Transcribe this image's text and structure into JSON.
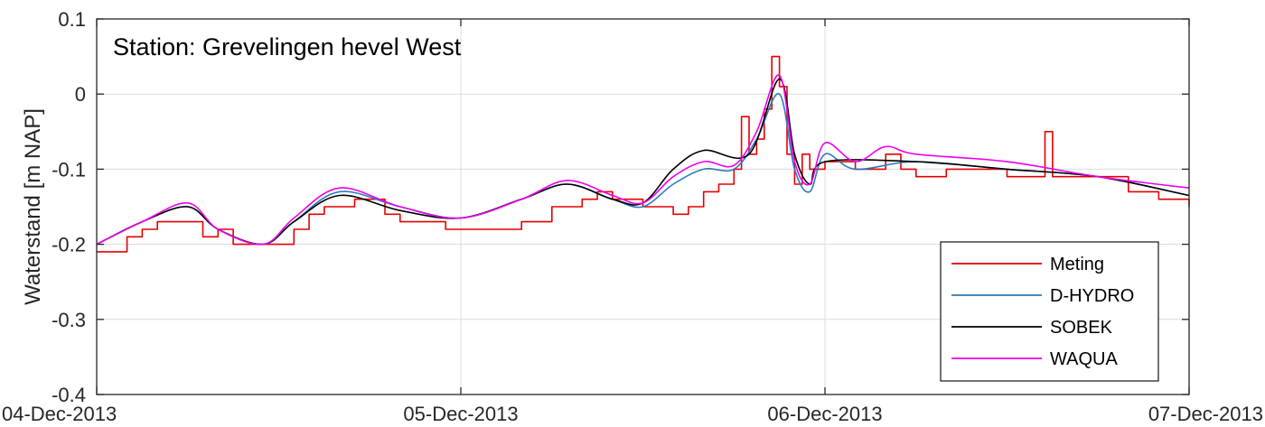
{
  "chart_data": {
    "type": "line",
    "annotation": "Station: Grevelingen hevel West",
    "ylabel": "Waterstand [m NAP]",
    "xlabel": "",
    "xlim": [
      "04-Dec-2013",
      "07-Dec-2013"
    ],
    "ylim": [
      -0.4,
      0.1
    ],
    "x_tick_labels": [
      "04-Dec-2013",
      "05-Dec-2013",
      "06-Dec-2013",
      "07-Dec-2013"
    ],
    "y_ticks": [
      -0.4,
      -0.3,
      -0.2,
      -0.1,
      0,
      0.1
    ],
    "y_tick_labels": [
      "-0.4",
      "-0.3",
      "-0.2",
      "-0.1",
      "0",
      "0.1"
    ],
    "grid": true,
    "legend_position": "bottom-right",
    "series": [
      {
        "name": "Meting",
        "color": "#e60000",
        "points": [
          [
            "04-Dec-2013 00:00",
            -0.21
          ],
          [
            "04-Dec-2013 01:00",
            -0.21
          ],
          [
            "04-Dec-2013 02:00",
            -0.19
          ],
          [
            "04-Dec-2013 03:00",
            -0.18
          ],
          [
            "04-Dec-2013 04:00",
            -0.17
          ],
          [
            "04-Dec-2013 06:00",
            -0.17
          ],
          [
            "04-Dec-2013 07:00",
            -0.19
          ],
          [
            "04-Dec-2013 08:00",
            -0.18
          ],
          [
            "04-Dec-2013 09:00",
            -0.2
          ],
          [
            "04-Dec-2013 12:00",
            -0.2
          ],
          [
            "04-Dec-2013 13:00",
            -0.18
          ],
          [
            "04-Dec-2013 14:00",
            -0.16
          ],
          [
            "04-Dec-2013 15:00",
            -0.15
          ],
          [
            "04-Dec-2013 17:00",
            -0.14
          ],
          [
            "04-Dec-2013 19:00",
            -0.16
          ],
          [
            "04-Dec-2013 20:00",
            -0.17
          ],
          [
            "04-Dec-2013 23:00",
            -0.18
          ],
          [
            "05-Dec-2013 02:00",
            -0.18
          ],
          [
            "05-Dec-2013 04:00",
            -0.17
          ],
          [
            "05-Dec-2013 06:00",
            -0.15
          ],
          [
            "05-Dec-2013 08:00",
            -0.14
          ],
          [
            "05-Dec-2013 09:00",
            -0.13
          ],
          [
            "05-Dec-2013 10:00",
            -0.14
          ],
          [
            "05-Dec-2013 12:00",
            -0.15
          ],
          [
            "05-Dec-2013 14:00",
            -0.16
          ],
          [
            "05-Dec-2013 15:00",
            -0.15
          ],
          [
            "05-Dec-2013 16:00",
            -0.13
          ],
          [
            "05-Dec-2013 17:00",
            -0.12
          ],
          [
            "05-Dec-2013 18:00",
            -0.1
          ],
          [
            "05-Dec-2013 18:30",
            -0.03
          ],
          [
            "05-Dec-2013 19:00",
            -0.08
          ],
          [
            "05-Dec-2013 19:30",
            -0.06
          ],
          [
            "05-Dec-2013 20:00",
            -0.02
          ],
          [
            "05-Dec-2013 20:30",
            0.05
          ],
          [
            "05-Dec-2013 21:00",
            0.01
          ],
          [
            "05-Dec-2013 21:30",
            -0.08
          ],
          [
            "05-Dec-2013 22:00",
            -0.12
          ],
          [
            "05-Dec-2013 22:30",
            -0.08
          ],
          [
            "05-Dec-2013 23:00",
            -0.1
          ],
          [
            "06-Dec-2013 00:00",
            -0.09
          ],
          [
            "06-Dec-2013 02:00",
            -0.1
          ],
          [
            "06-Dec-2013 04:00",
            -0.08
          ],
          [
            "06-Dec-2013 05:00",
            -0.1
          ],
          [
            "06-Dec-2013 06:00",
            -0.11
          ],
          [
            "06-Dec-2013 08:00",
            -0.1
          ],
          [
            "06-Dec-2013 12:00",
            -0.11
          ],
          [
            "06-Dec-2013 14:00",
            -0.11
          ],
          [
            "06-Dec-2013 14:30",
            -0.05
          ],
          [
            "06-Dec-2013 15:00",
            -0.11
          ],
          [
            "06-Dec-2013 18:00",
            -0.11
          ],
          [
            "06-Dec-2013 20:00",
            -0.13
          ],
          [
            "06-Dec-2013 22:00",
            -0.14
          ],
          [
            "07-Dec-2013 00:00",
            -0.15
          ]
        ]
      },
      {
        "name": "D-HYDRO",
        "color": "#2b7bb9",
        "points": [
          [
            "04-Dec-2013 00:00",
            -0.2
          ],
          [
            "04-Dec-2013 03:00",
            -0.17
          ],
          [
            "04-Dec-2013 06:00",
            -0.15
          ],
          [
            "04-Dec-2013 08:00",
            -0.18
          ],
          [
            "04-Dec-2013 11:00",
            -0.2
          ],
          [
            "04-Dec-2013 13:00",
            -0.17
          ],
          [
            "04-Dec-2013 16:00",
            -0.13
          ],
          [
            "04-Dec-2013 20:00",
            -0.15
          ],
          [
            "05-Dec-2013 00:00",
            -0.165
          ],
          [
            "05-Dec-2013 04:00",
            -0.14
          ],
          [
            "05-Dec-2013 07:00",
            -0.12
          ],
          [
            "05-Dec-2013 10:00",
            -0.14
          ],
          [
            "05-Dec-2013 12:00",
            -0.15
          ],
          [
            "05-Dec-2013 14:00",
            -0.12
          ],
          [
            "05-Dec-2013 16:00",
            -0.1
          ],
          [
            "05-Dec-2013 18:00",
            -0.1
          ],
          [
            "05-Dec-2013 19:30",
            -0.06
          ],
          [
            "05-Dec-2013 21:00",
            0.0
          ],
          [
            "05-Dec-2013 22:00",
            -0.1
          ],
          [
            "05-Dec-2013 23:00",
            -0.13
          ],
          [
            "06-Dec-2013 00:00",
            -0.08
          ],
          [
            "06-Dec-2013 02:00",
            -0.1
          ],
          [
            "06-Dec-2013 06:00",
            -0.09
          ],
          [
            "06-Dec-2013 12:00",
            -0.1
          ],
          [
            "06-Dec-2013 18:00",
            -0.11
          ],
          [
            "07-Dec-2013 00:00",
            -0.135
          ]
        ]
      },
      {
        "name": "SOBEK",
        "color": "#000000",
        "points": [
          [
            "04-Dec-2013 00:00",
            -0.2
          ],
          [
            "04-Dec-2013 03:00",
            -0.17
          ],
          [
            "04-Dec-2013 06:00",
            -0.15
          ],
          [
            "04-Dec-2013 08:00",
            -0.18
          ],
          [
            "04-Dec-2013 11:00",
            -0.2
          ],
          [
            "04-Dec-2013 13:00",
            -0.17
          ],
          [
            "04-Dec-2013 16:00",
            -0.135
          ],
          [
            "04-Dec-2013 20:00",
            -0.155
          ],
          [
            "05-Dec-2013 00:00",
            -0.165
          ],
          [
            "05-Dec-2013 04:00",
            -0.14
          ],
          [
            "05-Dec-2013 07:00",
            -0.12
          ],
          [
            "05-Dec-2013 10:00",
            -0.14
          ],
          [
            "05-Dec-2013 12:00",
            -0.145
          ],
          [
            "05-Dec-2013 14:00",
            -0.1
          ],
          [
            "05-Dec-2013 16:00",
            -0.075
          ],
          [
            "05-Dec-2013 19:00",
            -0.08
          ],
          [
            "05-Dec-2013 21:00",
            0.02
          ],
          [
            "05-Dec-2013 22:00",
            -0.08
          ],
          [
            "05-Dec-2013 23:00",
            -0.12
          ],
          [
            "06-Dec-2013 00:00",
            -0.09
          ],
          [
            "06-Dec-2013 06:00",
            -0.09
          ],
          [
            "06-Dec-2013 12:00",
            -0.1
          ],
          [
            "06-Dec-2013 18:00",
            -0.11
          ],
          [
            "07-Dec-2013 00:00",
            -0.135
          ]
        ]
      },
      {
        "name": "WAQUA",
        "color": "#ee00ee",
        "points": [
          [
            "04-Dec-2013 00:00",
            -0.2
          ],
          [
            "04-Dec-2013 03:00",
            -0.17
          ],
          [
            "04-Dec-2013 06:00",
            -0.145
          ],
          [
            "04-Dec-2013 08:00",
            -0.18
          ],
          [
            "04-Dec-2013 11:00",
            -0.2
          ],
          [
            "04-Dec-2013 13:00",
            -0.165
          ],
          [
            "04-Dec-2013 16:00",
            -0.125
          ],
          [
            "04-Dec-2013 20:00",
            -0.15
          ],
          [
            "05-Dec-2013 00:00",
            -0.165
          ],
          [
            "05-Dec-2013 04:00",
            -0.14
          ],
          [
            "05-Dec-2013 07:00",
            -0.115
          ],
          [
            "05-Dec-2013 10:00",
            -0.135
          ],
          [
            "05-Dec-2013 12:00",
            -0.145
          ],
          [
            "05-Dec-2013 14:00",
            -0.11
          ],
          [
            "05-Dec-2013 16:00",
            -0.09
          ],
          [
            "05-Dec-2013 18:00",
            -0.095
          ],
          [
            "05-Dec-2013 19:30",
            -0.05
          ],
          [
            "05-Dec-2013 21:00",
            0.025
          ],
          [
            "05-Dec-2013 22:00",
            -0.09
          ],
          [
            "05-Dec-2013 23:00",
            -0.12
          ],
          [
            "06-Dec-2013 00:00",
            -0.065
          ],
          [
            "06-Dec-2013 02:00",
            -0.09
          ],
          [
            "06-Dec-2013 04:00",
            -0.07
          ],
          [
            "06-Dec-2013 06:00",
            -0.08
          ],
          [
            "06-Dec-2013 12:00",
            -0.09
          ],
          [
            "06-Dec-2013 18:00",
            -0.11
          ],
          [
            "07-Dec-2013 00:00",
            -0.125
          ]
        ]
      }
    ]
  }
}
